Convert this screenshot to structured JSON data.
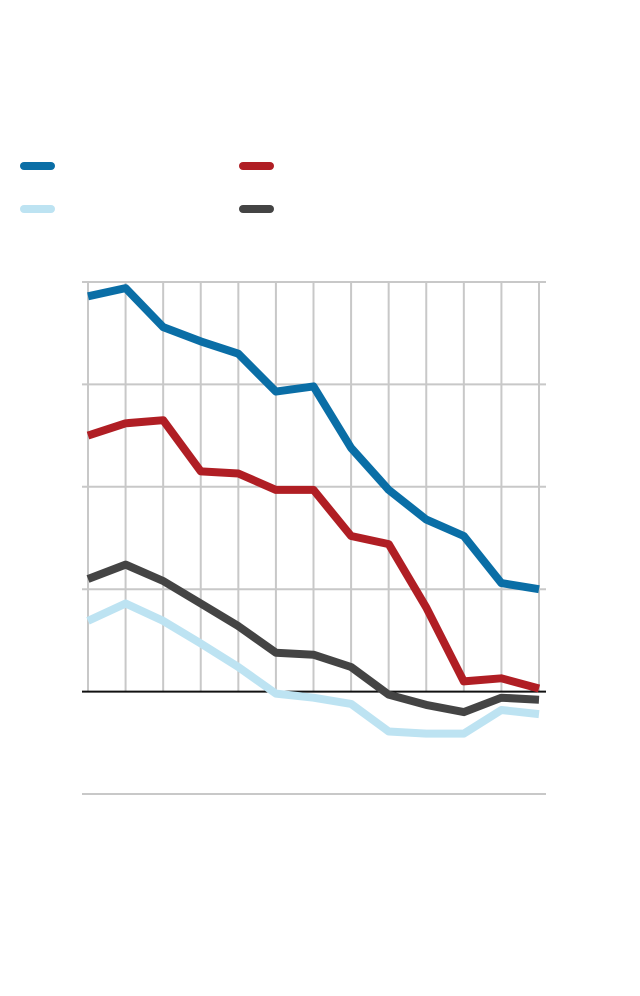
{
  "chart_data": {
    "type": "line",
    "title": "",
    "xlabel": "",
    "ylabel": "",
    "x": [
      1,
      2,
      3,
      4,
      5,
      6,
      7,
      8,
      9,
      10,
      11,
      12,
      13
    ],
    "ylim": [
      -1,
      4
    ],
    "grid": true,
    "legend_placement": "top",
    "series": [
      {
        "color": "#0a6ea6",
        "values": [
          3.86,
          3.94,
          3.56,
          3.42,
          3.3,
          2.93,
          2.98,
          2.38,
          1.97,
          1.68,
          1.52,
          1.06,
          1.0
        ]
      },
      {
        "color": "#b01e24",
        "values": [
          2.5,
          2.62,
          2.65,
          2.15,
          2.13,
          1.97,
          1.97,
          1.52,
          1.44,
          0.82,
          0.1,
          0.13,
          0.03
        ]
      },
      {
        "color": "#bde3f2",
        "values": [
          0.69,
          0.86,
          0.69,
          0.47,
          0.24,
          -0.02,
          -0.06,
          -0.12,
          -0.39,
          -0.41,
          -0.41,
          -0.18,
          -0.22
        ]
      },
      {
        "color": "#444444",
        "values": [
          1.1,
          1.24,
          1.08,
          0.86,
          0.64,
          0.38,
          0.36,
          0.24,
          -0.03,
          -0.13,
          -0.2,
          -0.06,
          -0.08
        ]
      }
    ]
  }
}
